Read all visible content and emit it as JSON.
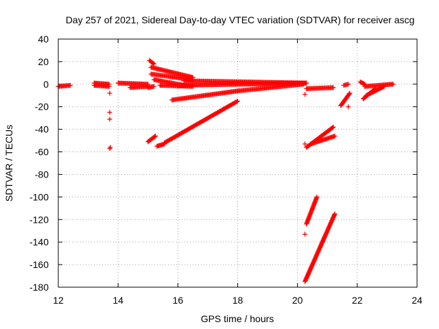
{
  "chart_data": {
    "type": "scatter",
    "title": "Day 257 of 2021, Sidereal Day-to-day VTEC variation (SDTVAR) for receiver ascg",
    "xlabel": "GPS time / hours",
    "ylabel": "SDTVAR / TECUs",
    "xlim": [
      12,
      24
    ],
    "ylim": [
      -180,
      40
    ],
    "xticks": [
      "12",
      "14",
      "16",
      "18",
      "20",
      "22",
      "24"
    ],
    "yticks": [
      "40",
      "20",
      "0",
      "-20",
      "-40",
      "-60",
      "-80",
      "-100",
      "-120",
      "-140",
      "-160",
      "-180"
    ],
    "grid": true,
    "marker": "+",
    "color": "#ff0000",
    "segments": [
      {
        "x": [
          12.0,
          12.4
        ],
        "y": [
          -2,
          -1
        ]
      },
      {
        "x": [
          13.2,
          13.7
        ],
        "y": [
          1,
          0
        ]
      },
      {
        "x": [
          13.2,
          13.7
        ],
        "y": [
          -1,
          -2
        ]
      },
      {
        "x": [
          14.0,
          15.0
        ],
        "y": [
          1,
          0
        ]
      },
      {
        "x": [
          14.4,
          15.0
        ],
        "y": [
          -3,
          -2
        ]
      },
      {
        "x": [
          15.0,
          15.2
        ],
        "y": [
          -3,
          -2
        ]
      },
      {
        "x": [
          15.05,
          15.2
        ],
        "y": [
          21,
          18
        ]
      },
      {
        "x": [
          15.1,
          16.5
        ],
        "y": [
          15,
          6
        ]
      },
      {
        "x": [
          15.1,
          16.5
        ],
        "y": [
          9,
          4
        ]
      },
      {
        "x": [
          15.2,
          16.2
        ],
        "y": [
          4,
          -1
        ]
      },
      {
        "x": [
          15.4,
          16.5
        ],
        "y": [
          -1,
          -2
        ]
      },
      {
        "x": [
          16.2,
          20.3
        ],
        "y": [
          3,
          1
        ]
      },
      {
        "x": [
          16.0,
          20.3
        ],
        "y": [
          -1,
          1
        ]
      },
      {
        "x": [
          15.8,
          18.0
        ],
        "y": [
          -14,
          -6
        ]
      },
      {
        "x": [
          18.0,
          20.2
        ],
        "y": [
          -6,
          0
        ]
      },
      {
        "x": [
          15.0,
          15.25
        ],
        "y": [
          -51,
          -46
        ]
      },
      {
        "x": [
          15.3,
          15.55
        ],
        "y": [
          -55,
          -53
        ]
      },
      {
        "x": [
          15.55,
          18.0
        ],
        "y": [
          -52,
          -15
        ]
      },
      {
        "x": [
          20.3,
          21.2
        ],
        "y": [
          -4,
          -3
        ]
      },
      {
        "x": [
          20.3,
          21.2
        ],
        "y": [
          -56,
          -38
        ]
      },
      {
        "x": [
          20.45,
          21.25
        ],
        "y": [
          -53,
          -46
        ]
      },
      {
        "x": [
          20.3,
          20.65
        ],
        "y": [
          -124,
          -100
        ]
      },
      {
        "x": [
          20.25,
          21.25
        ],
        "y": [
          -175,
          -115
        ]
      },
      {
        "x": [
          21.55,
          21.7
        ],
        "y": [
          -1,
          0
        ]
      },
      {
        "x": [
          21.45,
          21.75
        ],
        "y": [
          -19,
          -8
        ]
      },
      {
        "x": [
          22.1,
          22.25
        ],
        "y": [
          2,
          0
        ]
      },
      {
        "x": [
          22.25,
          23.2
        ],
        "y": [
          -2,
          0
        ]
      },
      {
        "x": [
          22.3,
          22.9
        ],
        "y": [
          -10,
          -2
        ]
      },
      {
        "x": [
          22.2,
          22.6
        ],
        "y": [
          -13,
          -4
        ]
      }
    ],
    "points": [
      {
        "x": 13.72,
        "y": -8
      },
      {
        "x": 13.72,
        "y": -25
      },
      {
        "x": 13.72,
        "y": -31
      },
      {
        "x": 13.72,
        "y": -57
      },
      {
        "x": 13.74,
        "y": -56
      },
      {
        "x": 20.25,
        "y": -9
      },
      {
        "x": 20.25,
        "y": -53
      },
      {
        "x": 20.25,
        "y": -133
      },
      {
        "x": 21.7,
        "y": -20
      }
    ]
  }
}
